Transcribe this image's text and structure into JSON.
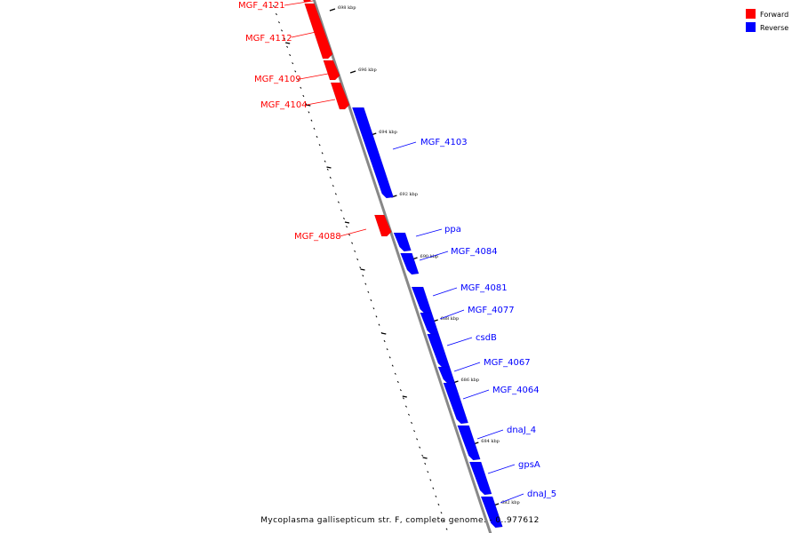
{
  "colors": {
    "forward": "#ff0000",
    "reverse": "#0000ff",
    "axis": "#888888",
    "leader_forward": "#ff0000",
    "leader_reverse": "#0000ff",
    "tick": "#000000"
  },
  "legend": {
    "forward_label": "Forward",
    "reverse_label": "Reverse"
  },
  "genome_caption": "Mycoplasma gallisepticum str. F, complete genome. - 0..977612",
  "axis_labels": [
    "698 kbp",
    "696 kbp",
    "694 kbp",
    "692 kbp",
    "690 kbp",
    "688 kbp",
    "686 kbp",
    "684 kbp",
    "682 kbp"
  ],
  "genes": [
    {
      "name": "MGF_4121",
      "strand": "forward"
    },
    {
      "name": "MGF_4112",
      "strand": "forward"
    },
    {
      "name": "MGF_4109",
      "strand": "forward"
    },
    {
      "name": "MGF_4104",
      "strand": "forward"
    },
    {
      "name": "MGF_4103",
      "strand": "reverse"
    },
    {
      "name": "MGF_4088",
      "strand": "forward"
    },
    {
      "name": "ppa",
      "strand": "reverse"
    },
    {
      "name": "MGF_4084",
      "strand": "reverse"
    },
    {
      "name": "MGF_4081",
      "strand": "reverse"
    },
    {
      "name": "MGF_4077",
      "strand": "reverse"
    },
    {
      "name": "csdB",
      "strand": "reverse"
    },
    {
      "name": "MGF_4067",
      "strand": "reverse"
    },
    {
      "name": "MGF_4064",
      "strand": "reverse"
    },
    {
      "name": "dnaJ_4",
      "strand": "reverse"
    },
    {
      "name": "gpsA",
      "strand": "reverse"
    },
    {
      "name": "dnaJ_5",
      "strand": "reverse"
    }
  ]
}
